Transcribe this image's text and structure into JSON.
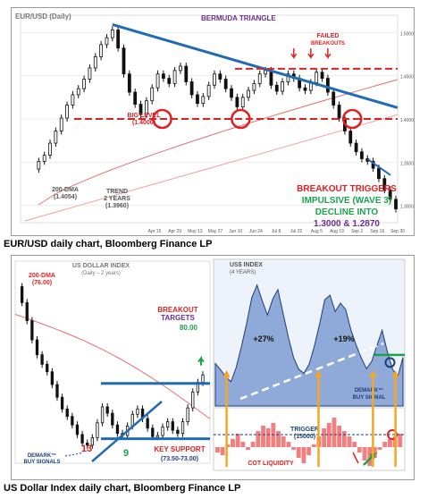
{
  "captions": {
    "top": "EUR/USD daily chart, Bloomberg Finance LP",
    "bottom": "US Dollar Index daily chart, Bloomberg Finance LP"
  },
  "colors": {
    "price": "#111111",
    "trend": "#1f6bb5",
    "red": "#e02020",
    "green": "#1aa34a",
    "purple": "#6a2c91",
    "orange": "#f5a623",
    "navy": "#1a3d7c",
    "area_fill": "#8fa9d8",
    "cot_fill": "#f08080"
  },
  "chart_data": [
    {
      "type": "line",
      "panel": "top",
      "series_label": "EUR/USD (Daily)",
      "annotations": {
        "bermuda": "BERMUDA TRIANGLE",
        "failed": [
          "FAILED",
          "BREAKOUTS"
        ],
        "big_level": [
          "BIG LEVEL",
          "(1.4000)"
        ],
        "dma": [
          "200-DMA",
          "(1.4054)"
        ],
        "trend": [
          "TREND",
          "2 YEARS",
          "(1.3960)"
        ],
        "breakout": "BREAKOUT TRIGGERS",
        "impulsive": "IMPULSIVE (WAVE 3)",
        "decline": "DECLINE INTO",
        "targets": "1.3000 & 1.2870"
      },
      "x_ticks": [
        "Apr 15",
        "Apr 29",
        "May 13",
        "May 27",
        "Jun 10",
        "Jun 24",
        "Jul 8",
        "Jul 22",
        "Aug 5",
        "Aug 19",
        "Sep 2",
        "Sep 16",
        "Sep 30"
      ],
      "y_ticks": [
        "1.3000",
        "1.3500",
        "1.4000",
        "1.4500",
        "1.5000"
      ],
      "y_range": [
        1.28,
        1.52
      ],
      "price": [
        1.342,
        1.351,
        1.358,
        1.372,
        1.386,
        1.401,
        1.416,
        1.428,
        1.435,
        1.446,
        1.459,
        1.472,
        1.486,
        1.494,
        1.503,
        1.482,
        1.452,
        1.431,
        1.417,
        1.405,
        1.421,
        1.436,
        1.452,
        1.447,
        1.441,
        1.456,
        1.461,
        1.443,
        1.428,
        1.418,
        1.426,
        1.439,
        1.452,
        1.446,
        1.435,
        1.425,
        1.414,
        1.425,
        1.433,
        1.441,
        1.452,
        1.456,
        1.439,
        1.432,
        1.443,
        1.452,
        1.447,
        1.436,
        1.433,
        1.442,
        1.454,
        1.447,
        1.431,
        1.416,
        1.401,
        1.386,
        1.372,
        1.362,
        1.354,
        1.351,
        1.343,
        1.331,
        1.318,
        1.307,
        1.296
      ]
    },
    {
      "type": "line",
      "panel": "bottom-left",
      "series_label": "US DOLLAR INDEX",
      "series_sublabel": "(Daily – 2 years)",
      "annotations": {
        "dma": [
          "200-DMA",
          "(76.00)"
        ],
        "breakout": [
          "BREAKOUT",
          "TARGETS"
        ],
        "target_value": "80.00",
        "demark": [
          "DEMARK™",
          "BUY SIGNALS"
        ],
        "count_13": "13",
        "count_9": "9",
        "key_support": "KEY SUPPORT",
        "support_range": "(73.50-73.00)"
      },
      "y_range": [
        71,
        90
      ],
      "price": [
        87.6,
        86.1,
        84.4,
        82.6,
        81.2,
        80.3,
        79.6,
        78.4,
        77.2,
        76.1,
        75.4,
        74.6,
        73.7,
        72.9,
        72.7,
        73.4,
        74.8,
        76.3,
        75.7,
        74.6,
        73.8,
        73.6,
        74.5,
        75.6,
        76.1,
        75.2,
        74.3,
        73.5,
        73.6,
        74.4,
        74.9,
        74.1,
        73.8,
        74.9,
        76.2,
        77.7,
        78.6,
        79.3
      ]
    },
    {
      "type": "area",
      "panel": "bottom-right",
      "series_label": "US$ INDEX",
      "series_sublabel": "(4 YEARS)",
      "annotations": {
        "gain_1": "+27%",
        "gain_2": "+19%",
        "demark": [
          "DEMARK™",
          "BUY SIGNAL"
        ],
        "trigger": [
          "TRIGGER",
          "(15000)"
        ],
        "cot": "COT LIQUIDITY"
      },
      "y_range": [
        70,
        95
      ],
      "price": [
        77.5,
        76.4,
        75.2,
        74.3,
        76.8,
        80.5,
        84.6,
        89.2,
        91.4,
        88.6,
        86.1,
        88.9,
        90.6,
        86.4,
        82.2,
        78.6,
        76.5,
        75.8,
        77.4,
        80.6,
        84.5,
        88.8,
        89.6,
        86.7,
        88.2,
        87.1,
        83.5,
        80.8,
        78.5,
        76.6,
        77.9,
        80.7,
        83.4,
        79.6,
        76.5,
        75.2,
        78.6
      ],
      "cot": [
        -2,
        -3,
        1,
        3,
        5,
        2,
        -1,
        2,
        6,
        8,
        7,
        9,
        6,
        4,
        2,
        -1,
        -4,
        -6,
        -3,
        1,
        4,
        7,
        9,
        11,
        8,
        6,
        4,
        2,
        -2,
        -5,
        -7,
        -4,
        -1,
        2,
        3,
        4,
        5
      ]
    }
  ]
}
